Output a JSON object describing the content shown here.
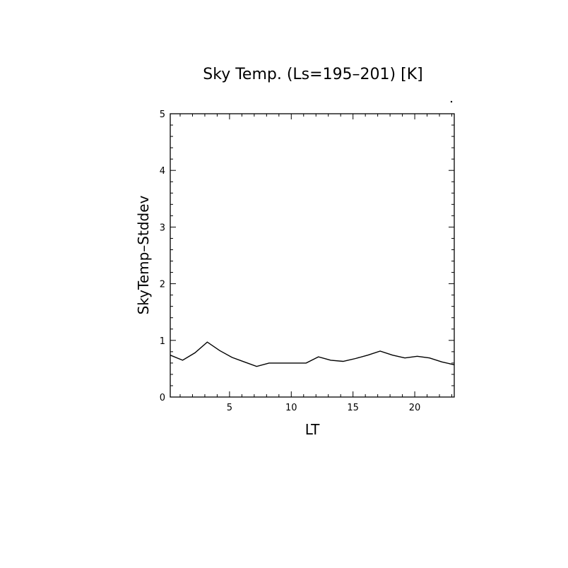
{
  "chart_data": {
    "type": "line",
    "title": "Sky Temp. (Ls=195–201) [K]",
    "xlabel": "LT",
    "ylabel": "SkyTemp–Stddev",
    "xlim": [
      0.2,
      23.2
    ],
    "ylim": [
      0,
      5
    ],
    "x_ticks": [
      5,
      10,
      15,
      20
    ],
    "y_ticks": [
      0,
      1,
      2,
      3,
      4,
      5
    ],
    "x_tick_labels": [
      "5",
      "10",
      "15",
      "20"
    ],
    "y_tick_labels": [
      "0",
      "1",
      "2",
      "3",
      "4",
      "5"
    ],
    "grid": false,
    "series": [
      {
        "x": [
          0.2,
          1.2,
          2.2,
          3.2,
          4.2,
          5.2,
          6.2,
          7.2,
          8.2,
          9.2,
          10.2,
          11.2,
          12.2,
          13.2,
          14.2,
          15.2,
          16.2,
          17.2,
          18.2,
          19.2,
          20.2,
          21.2,
          22.2,
          23.2
        ],
        "values": [
          0.74,
          0.65,
          0.78,
          0.97,
          0.82,
          0.7,
          0.62,
          0.54,
          0.6,
          0.6,
          0.6,
          0.6,
          0.71,
          0.65,
          0.63,
          0.68,
          0.74,
          0.81,
          0.74,
          0.69,
          0.72,
          0.69,
          0.62,
          0.57
        ],
        "color": "#000000"
      }
    ]
  }
}
